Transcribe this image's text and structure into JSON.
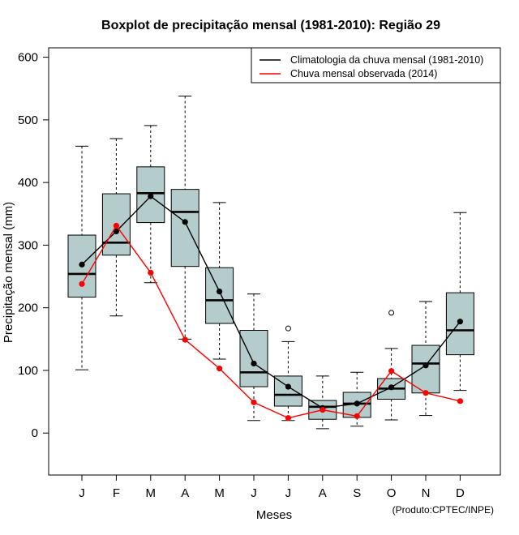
{
  "chart_data": {
    "type": "boxplot",
    "title": "Boxplot de precipitação mensal (1981-2010): Região 29",
    "xlabel": "Meses",
    "ylabel": "Precipitação mensal (mm)",
    "credit": "(Produto:CPTEC/INPE)",
    "ylim": [
      -67,
      615
    ],
    "yticks": [
      0,
      100,
      200,
      300,
      400,
      500,
      600
    ],
    "categories": [
      "J",
      "F",
      "M",
      "A",
      "M",
      "J",
      "J",
      "A",
      "S",
      "O",
      "N",
      "D"
    ],
    "boxes": [
      {
        "min": 101,
        "q1": 217,
        "median": 254,
        "q3": 316,
        "max": 458,
        "outliers": []
      },
      {
        "min": 187,
        "q1": 284,
        "median": 304,
        "q3": 382,
        "max": 470,
        "outliers": []
      },
      {
        "min": 240,
        "q1": 336,
        "median": 383,
        "q3": 425,
        "max": 491,
        "outliers": []
      },
      {
        "min": 150,
        "q1": 266,
        "median": 353,
        "q3": 389,
        "max": 538,
        "outliers": []
      },
      {
        "min": 118,
        "q1": 175,
        "median": 212,
        "q3": 264,
        "max": 368,
        "outliers": []
      },
      {
        "min": 20,
        "q1": 74,
        "median": 97,
        "q3": 164,
        "max": 222,
        "outliers": []
      },
      {
        "min": 20,
        "q1": 43,
        "median": 61,
        "q3": 91,
        "max": 146,
        "outliers": [
          167
        ]
      },
      {
        "min": 7,
        "q1": 22,
        "median": 42,
        "q3": 52,
        "max": 91,
        "outliers": []
      },
      {
        "min": 11,
        "q1": 25,
        "median": 47,
        "q3": 65,
        "max": 97,
        "outliers": []
      },
      {
        "min": 21,
        "q1": 54,
        "median": 71,
        "q3": 87,
        "max": 135,
        "outliers": [
          192
        ]
      },
      {
        "min": 28,
        "q1": 64,
        "median": 111,
        "q3": 140,
        "max": 210,
        "outliers": []
      },
      {
        "min": 68,
        "q1": 125,
        "median": 164,
        "q3": 224,
        "max": 352,
        "outliers": []
      }
    ],
    "series": [
      {
        "name": "Climatologia da chuva mensal (1981-2010)",
        "color": "#000000",
        "values": [
          269,
          322,
          378,
          337,
          226,
          111,
          74,
          40,
          47,
          73,
          108,
          178
        ]
      },
      {
        "name": "Chuva mensal observada (2014)",
        "color": "#ff0000",
        "values": [
          238,
          331,
          256,
          149,
          103,
          49,
          24,
          37,
          27,
          99,
          64,
          51
        ]
      }
    ],
    "box_fill": "#b4cccc",
    "legend_position": "top-right"
  }
}
